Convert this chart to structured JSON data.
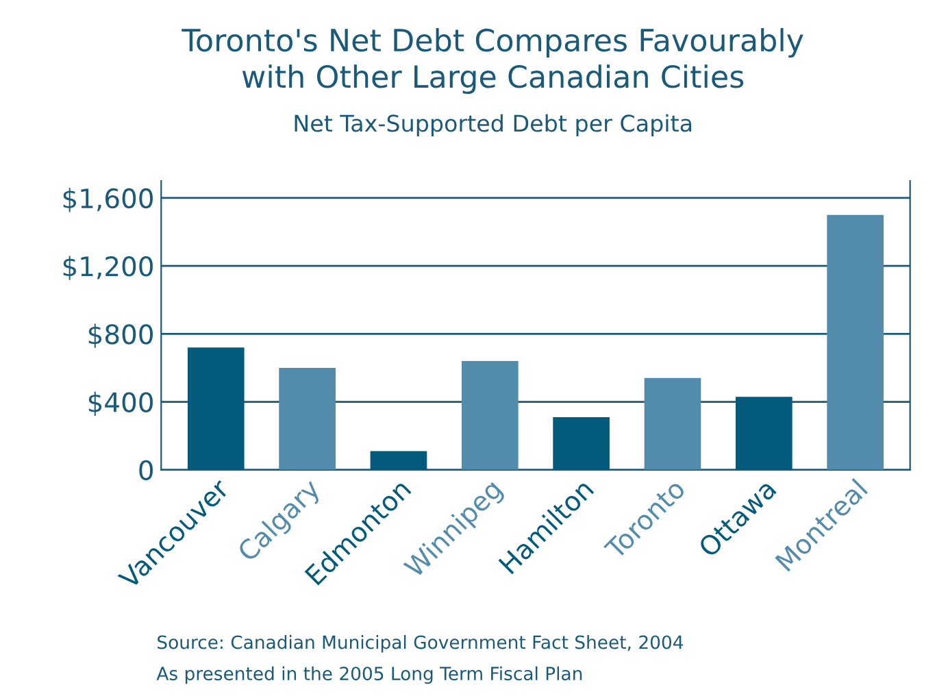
{
  "chart_data": {
    "type": "bar",
    "title": "Toronto's Net Debt Compares Favourably\nwith Other Large Canadian Cities",
    "subtitle": "Net Tax-Supported Debt per Capita",
    "categories": [
      "Vancouver",
      "Calgary",
      "Edmonton",
      "Winnipeg",
      "Hamilton",
      "Toronto",
      "Ottawa",
      "Montreal"
    ],
    "values": [
      720,
      600,
      110,
      640,
      310,
      540,
      430,
      1500
    ],
    "colors": [
      "#045a7a",
      "#538bab",
      "#045a7a",
      "#538bab",
      "#045a7a",
      "#538bab",
      "#045a7a",
      "#538bab"
    ],
    "ylim": [
      0,
      1700
    ],
    "yticks": [
      {
        "value": 0,
        "label": "0"
      },
      {
        "value": 400,
        "label": "$400"
      },
      {
        "value": 800,
        "label": "$800"
      },
      {
        "value": 1200,
        "label": "$1,200"
      },
      {
        "value": 1600,
        "label": "$1,600"
      }
    ],
    "grid": "y",
    "legend": false,
    "annotations": [
      "Source: Canadian Municipal Government Fact Sheet, 2004",
      "As presented in the 2005 Long Term Fiscal Plan"
    ]
  }
}
